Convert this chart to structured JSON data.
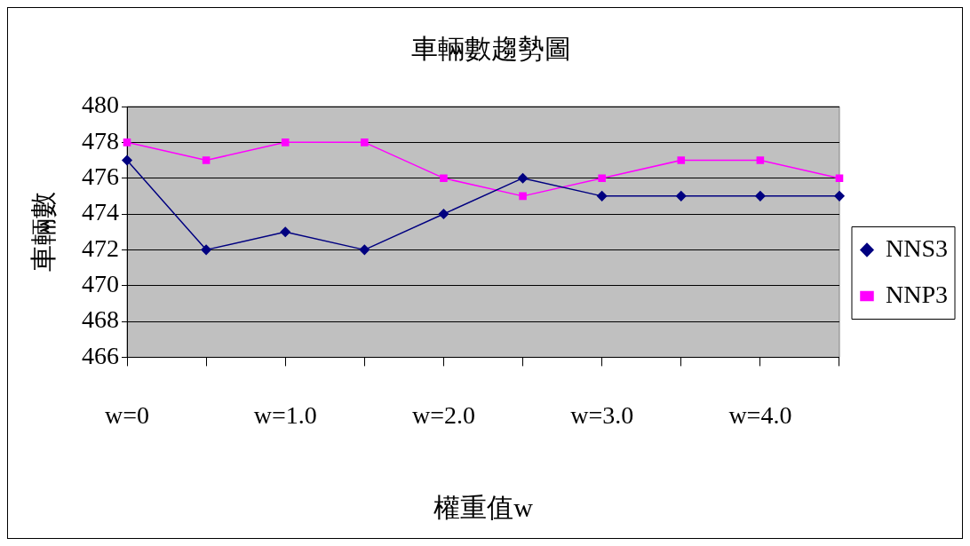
{
  "chart_data": {
    "type": "line",
    "title": "車輛數趨勢圖",
    "xlabel": "權重值w",
    "ylabel": "車輛數",
    "categories": [
      "w=0",
      null,
      "w=1.0",
      null,
      "w=2.0",
      null,
      "w=3.0",
      null,
      "w=4.0",
      null
    ],
    "series": [
      {
        "name": "NNS3",
        "color": "#000080",
        "marker": "diamond",
        "values": [
          477,
          472,
          473,
          472,
          474,
          476,
          475,
          475,
          475,
          475
        ]
      },
      {
        "name": "NNP3",
        "color": "#ff00ff",
        "marker": "square",
        "values": [
          478,
          477,
          478,
          478,
          476,
          475,
          476,
          477,
          477,
          476
        ]
      }
    ],
    "ylim": [
      466,
      480
    ],
    "yticks": [
      466,
      468,
      470,
      472,
      474,
      476,
      478,
      480
    ],
    "grid": "y",
    "legend": "right"
  }
}
